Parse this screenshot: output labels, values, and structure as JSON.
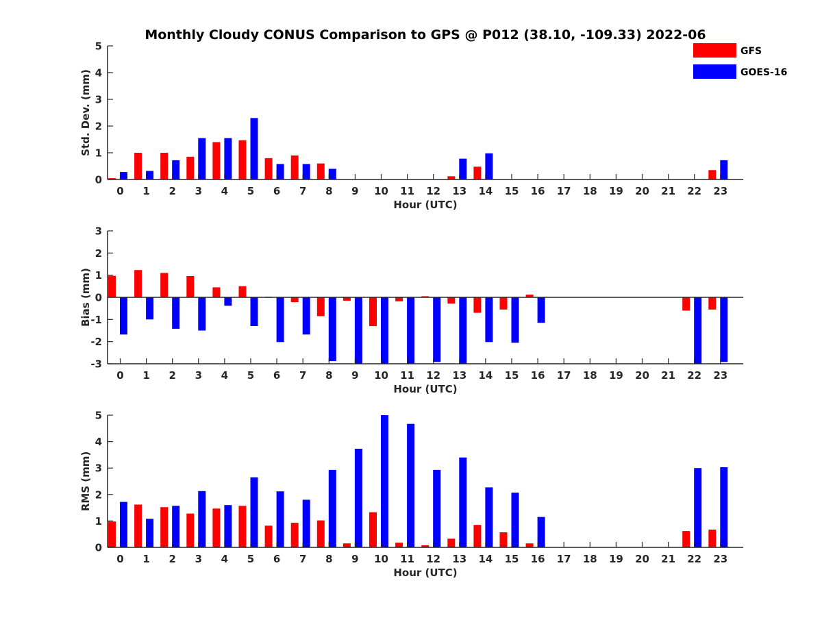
{
  "page": {
    "title": "Monthly Cloudy CONUS Comparison to GPS @ P012 (38.10, -109.33) 2022-06"
  },
  "legend": {
    "placement": "top-right",
    "items": [
      {
        "name": "GFS",
        "color": "#ff0000"
      },
      {
        "name": "GOES-16",
        "color": "#0000ff"
      }
    ]
  },
  "chart_data": [
    {
      "type": "bar",
      "xlabel": "Hour (UTC)",
      "ylabel": "Std. Dev. (mm)",
      "ylim": [
        0,
        5
      ],
      "yticks": [
        0,
        1,
        2,
        3,
        4,
        5
      ],
      "categories": [
        "0",
        "1",
        "2",
        "3",
        "4",
        "5",
        "6",
        "7",
        "8",
        "9",
        "10",
        "11",
        "12",
        "13",
        "14",
        "15",
        "16",
        "17",
        "18",
        "19",
        "20",
        "21",
        "22",
        "23"
      ],
      "series": [
        {
          "name": "GFS",
          "color": "#ff0000",
          "values": [
            0.05,
            1.0,
            1.0,
            0.85,
            1.4,
            1.47,
            0.8,
            0.9,
            0.6,
            0,
            0,
            0,
            0,
            0.12,
            0.48,
            0,
            0,
            0,
            0,
            0,
            0,
            0,
            0,
            0.35
          ]
        },
        {
          "name": "GOES-16",
          "color": "#0000ff",
          "values": [
            0.28,
            0.32,
            0.72,
            1.55,
            1.55,
            2.3,
            0.58,
            0.58,
            0.4,
            0,
            0,
            0,
            0,
            0.78,
            0.98,
            0,
            0,
            0,
            0,
            0,
            0,
            0,
            0,
            0.72
          ]
        }
      ]
    },
    {
      "type": "bar",
      "xlabel": "Hour (UTC)",
      "ylabel": "Bias (mm)",
      "ylim": [
        -3,
        3
      ],
      "yticks": [
        -3,
        -2,
        -1,
        0,
        1,
        2,
        3
      ],
      "zero_line": true,
      "categories": [
        "0",
        "1",
        "2",
        "3",
        "4",
        "5",
        "6",
        "7",
        "8",
        "9",
        "10",
        "11",
        "12",
        "13",
        "14",
        "15",
        "16",
        "17",
        "18",
        "19",
        "20",
        "21",
        "22",
        "23"
      ],
      "series": [
        {
          "name": "GFS",
          "color": "#ff0000",
          "values": [
            0.97,
            1.23,
            1.1,
            0.96,
            0.45,
            0.5,
            0.03,
            -0.22,
            -0.85,
            -0.15,
            -1.3,
            -0.18,
            0.05,
            -0.28,
            -0.7,
            -0.55,
            0.12,
            0,
            0,
            0,
            0,
            0,
            -0.6,
            -0.55
          ]
        },
        {
          "name": "GOES-16",
          "color": "#0000ff",
          "values": [
            -1.68,
            -1.0,
            -1.42,
            -1.5,
            -0.38,
            -1.3,
            -2.02,
            -1.68,
            -2.88,
            -3.0,
            -3.0,
            -3.0,
            -2.92,
            -3.0,
            -2.02,
            -2.05,
            -1.15,
            0,
            0,
            0,
            0,
            0,
            -3.0,
            -2.92
          ]
        }
      ]
    },
    {
      "type": "bar",
      "xlabel": "Hour (UTC)",
      "ylabel": "RMS (mm)",
      "ylim": [
        0,
        5
      ],
      "yticks": [
        0,
        1,
        2,
        3,
        4,
        5
      ],
      "categories": [
        "0",
        "1",
        "2",
        "3",
        "4",
        "5",
        "6",
        "7",
        "8",
        "9",
        "10",
        "11",
        "12",
        "13",
        "14",
        "15",
        "16",
        "17",
        "18",
        "19",
        "20",
        "21",
        "22",
        "23"
      ],
      "series": [
        {
          "name": "GFS",
          "color": "#ff0000",
          "values": [
            0.98,
            1.62,
            1.52,
            1.28,
            1.47,
            1.57,
            0.82,
            0.93,
            1.02,
            0.15,
            1.33,
            0.18,
            0.08,
            0.33,
            0.85,
            0.57,
            0.15,
            0,
            0,
            0,
            0,
            0,
            0.62,
            0.67
          ]
        },
        {
          "name": "GOES-16",
          "color": "#0000ff",
          "values": [
            1.72,
            1.08,
            1.57,
            2.13,
            1.6,
            2.65,
            2.12,
            1.8,
            2.93,
            3.73,
            5.0,
            4.67,
            2.93,
            3.4,
            2.27,
            2.07,
            1.15,
            0,
            0,
            0,
            0,
            0,
            3.0,
            3.03
          ]
        }
      ]
    }
  ]
}
